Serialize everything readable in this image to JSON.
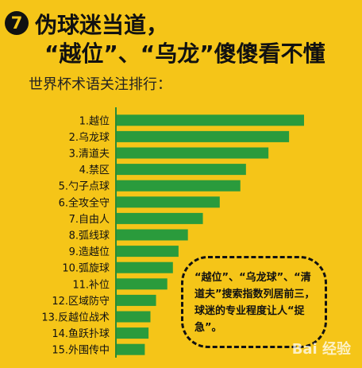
{
  "header": {
    "badge": "7",
    "title_line1": "伪球迷当道，",
    "title_line2": "“越位”、“乌龙”傻傻看不懂",
    "subtitle": "世界杯术语关注排行："
  },
  "chart_data": {
    "type": "bar",
    "orientation": "horizontal",
    "categories": [
      "1.越位",
      "2.乌龙球",
      "3.清道夫",
      "4.禁区",
      "5.勺子点球",
      "6.全攻全守",
      "7.自由人",
      "8.弧线球",
      "9.造越位",
      "10.弧旋球",
      "11.补位",
      "12.区域防守",
      "13.反越位战术",
      "14.鱼跃扑球",
      "15.外围传中"
    ],
    "values": [
      100,
      92,
      81,
      69,
      66,
      55,
      46,
      38,
      33,
      30,
      27,
      21,
      18,
      17,
      15
    ],
    "ylabel": "",
    "xlabel": "",
    "xlim": [
      0,
      100
    ],
    "grid": false,
    "colors": {
      "bar": "#2a9b3c",
      "background": "#f5c518",
      "text": "#111111"
    }
  },
  "note": {
    "text": "“越位”、“乌龙球”、“清道夫”搜索指数列居前三，球迷的专业程度让人“捉急”。"
  },
  "watermark": "Bai 经验"
}
